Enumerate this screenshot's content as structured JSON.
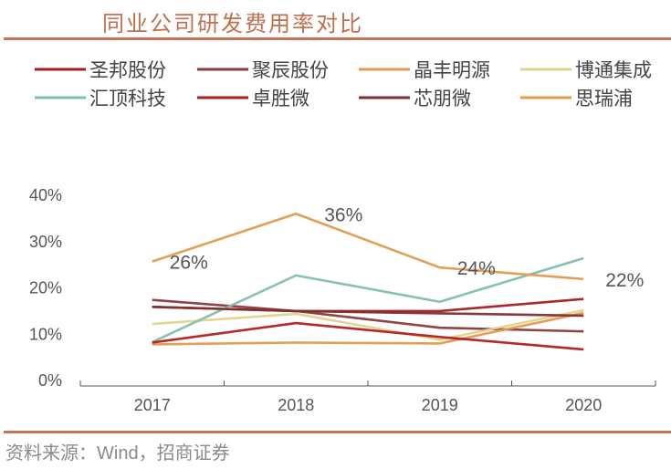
{
  "header": {
    "title": "同业公司研发费用率对比"
  },
  "footer": {
    "source": "资料来源：Wind，招商证券"
  },
  "chart_data": {
    "type": "line",
    "title": "同业公司研发费用率对比",
    "xlabel": "",
    "ylabel": "",
    "categories": [
      "2017",
      "2018",
      "2019",
      "2020"
    ],
    "ylim": [
      0,
      40
    ],
    "yticks": [
      0,
      10,
      20,
      30,
      40
    ],
    "ytick_labels": [
      "0%",
      "10%",
      "20%",
      "30%",
      "40%"
    ],
    "grid": false,
    "legend": "top",
    "series": [
      {
        "name": "圣邦股份",
        "color": "#A31E22",
        "values": [
          15.7,
          14.8,
          14.8,
          17.4
        ]
      },
      {
        "name": "聚辰股份",
        "color": "#8B3A3A",
        "values": [
          17.2,
          14.8,
          11.2,
          10.4
        ]
      },
      {
        "name": "晶丰明源",
        "color": "#E39A4E",
        "values": [
          7.6,
          8.0,
          7.8,
          14.4
        ]
      },
      {
        "name": "博通集成",
        "color": "#E3D28E",
        "values": [
          12.0,
          14.2,
          8.6,
          15.0
        ]
      },
      {
        "name": "汇顶科技",
        "color": "#7FBFB0",
        "values": [
          8.1,
          22.5,
          16.8,
          26.2
        ]
      },
      {
        "name": "卓胜微",
        "color": "#B01E1E",
        "values": [
          8.0,
          12.2,
          9.2,
          6.5
        ]
      },
      {
        "name": "芯朋微",
        "color": "#7E2E2E",
        "values": [
          15.7,
          14.8,
          14.3,
          13.8
        ]
      },
      {
        "name": "思瑞浦",
        "color": "#E39A4E",
        "values": [
          25.5,
          35.8,
          24.2,
          21.7
        ]
      }
    ],
    "annotations": [
      {
        "series": "思瑞浦",
        "category": "2017",
        "text": "26%"
      },
      {
        "series": "思瑞浦",
        "category": "2018",
        "text": "36%"
      },
      {
        "series": "思瑞浦",
        "category": "2019",
        "text": "24%"
      },
      {
        "series": "思瑞浦",
        "category": "2020",
        "text": "22%"
      }
    ]
  }
}
